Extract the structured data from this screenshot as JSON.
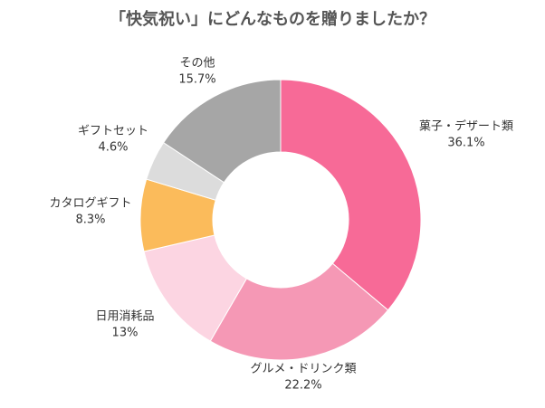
{
  "chart_data": {
    "type": "donut",
    "title": "「快気祝い」にどんなものを贈りましたか？",
    "categories": [
      "菓子・デザート類",
      "グルメ・ドリンク類",
      "日用消耗品",
      "カタログギフト",
      "ギフトセット",
      "その他"
    ],
    "values": [
      36.1,
      22.2,
      13,
      8.3,
      4.6,
      15.7
    ],
    "value_labels": [
      "36.1%",
      "22.2%",
      "13%",
      "8.3%",
      "4.6%",
      "15.7%"
    ],
    "colors": [
      "#f76a97",
      "#f598b5",
      "#fcd5e2",
      "#fbbb5b",
      "#dcdcdc",
      "#a6a6a6"
    ]
  }
}
